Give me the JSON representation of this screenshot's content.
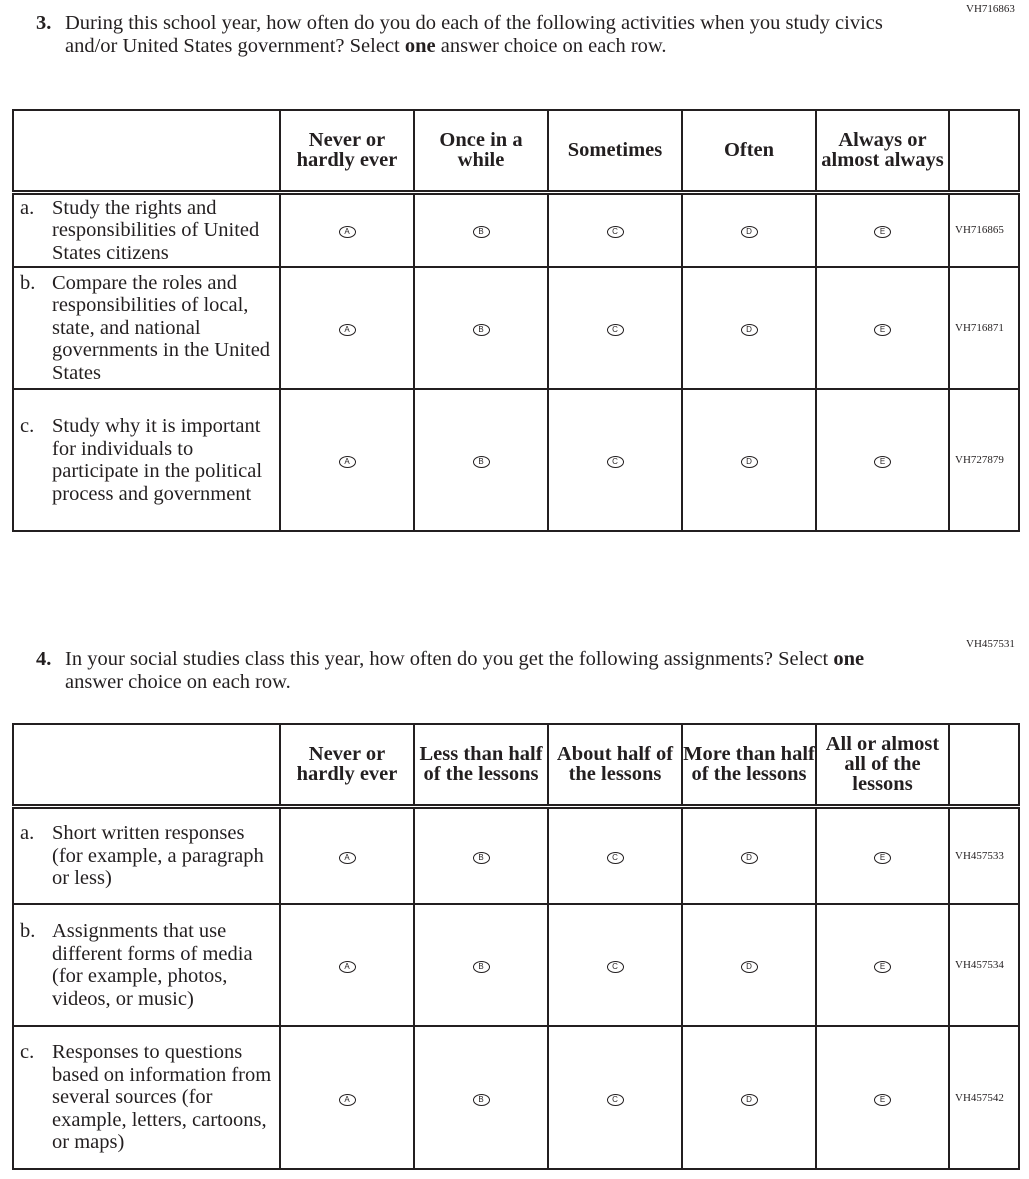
{
  "questions": [
    {
      "id": "VH716863",
      "number": "3.",
      "text_before": "During this school year, how often do you do each of the following activities when you study civics and/or United States government? Select ",
      "text_bold": "one",
      "text_after": " answer choice on each row.",
      "columns": [
        "Never or hardly ever",
        "Once in a while",
        "Sometimes",
        "Often",
        "Always or almost always"
      ],
      "rows": [
        {
          "letter": "a.",
          "text": "Study the rights and responsibilities of United States citizens",
          "code": "VH716865"
        },
        {
          "letter": "b.",
          "text": "Compare the roles and responsibilities of local, state, and national governments in the United States",
          "code": "VH716871"
        },
        {
          "letter": "c.",
          "text": "Study why it is important for individuals to participate in the political process and government",
          "code": "VH727879"
        }
      ]
    },
    {
      "id": "VH457531",
      "number": "4.",
      "text_before": "In your social studies class this year, how often do you get the following assignments? Select ",
      "text_bold": "one",
      "text_after": " answer choice on each row.",
      "columns": [
        "Never or hardly ever",
        "Less than half of the lessons",
        "About half of the lessons",
        "More than half of the lessons",
        "All or almost all of the lessons"
      ],
      "rows": [
        {
          "letter": "a.",
          "text": "Short written responses (for example, a paragraph or less)",
          "code": "VH457533"
        },
        {
          "letter": "b.",
          "text": "Assignments that use different forms of media (for example, photos, videos, or music)",
          "code": "VH457534"
        },
        {
          "letter": "c.",
          "text": "Responses to questions based on information from several sources (for example, letters, cartoons, or maps)",
          "code": "VH457542"
        }
      ]
    }
  ],
  "options": [
    "A",
    "B",
    "C",
    "D",
    "E"
  ]
}
